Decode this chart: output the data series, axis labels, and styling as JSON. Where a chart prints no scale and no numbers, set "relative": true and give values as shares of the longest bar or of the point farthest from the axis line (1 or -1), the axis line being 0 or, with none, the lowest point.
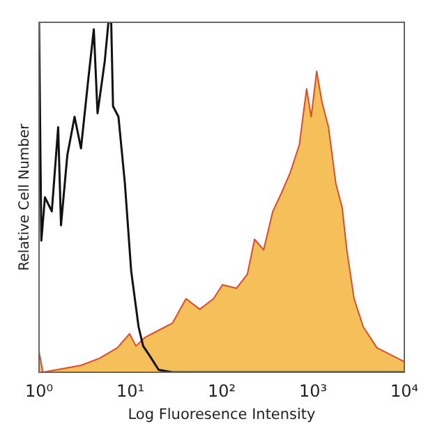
{
  "chart_data": {
    "type": "area",
    "relative": true,
    "log": "x",
    "xlabel": "Log Fluoresence Intensity",
    "ylabel": "Relative Cell Number",
    "xlim": [
      1,
      10000
    ],
    "xticks": [
      {
        "value": 1,
        "label": "10⁰"
      },
      {
        "value": 10,
        "label": "10¹"
      },
      {
        "value": 100,
        "label": "10²"
      },
      {
        "value": 1000,
        "label": "10³"
      },
      {
        "value": 10000,
        "label": "10⁴"
      }
    ],
    "grid": false,
    "legend": false,
    "series": [
      {
        "color": "#f5c05a",
        "x": [
          1,
          1.1,
          2.9,
          4.6,
          7.2,
          9.8,
          11.5,
          14.5,
          20.4,
          28.8,
          40.7,
          57.5,
          81.3,
          102,
          145,
          191,
          229,
          288,
          363,
          447,
          562,
          708,
          851,
          955,
          1096,
          1259,
          1479,
          1778,
          2089,
          2344,
          2818,
          3548,
          5012,
          7079,
          10000
        ],
        "values": [
          0.06,
          0,
          0.02,
          0.04,
          0.07,
          0.11,
          0.075,
          0.1,
          0.12,
          0.14,
          0.21,
          0.18,
          0.21,
          0.25,
          0.24,
          0.28,
          0.38,
          0.35,
          0.46,
          0.51,
          0.57,
          0.65,
          0.81,
          0.73,
          0.86,
          0.77,
          0.7,
          0.54,
          0.47,
          0.35,
          0.21,
          0.13,
          0.07,
          0.05,
          0.03
        ]
      },
      {
        "type": "line",
        "color": "#111111",
        "x": [
          1,
          1.06,
          1.16,
          1.38,
          1.62,
          1.74,
          2.04,
          2.45,
          2.88,
          3.47,
          3.98,
          4.37,
          5.25,
          5.75,
          6.17,
          6.46,
          7.41,
          8.71,
          10.2,
          12.3,
          13.8,
          16.2,
          20.4,
          28.8,
          100,
          1000,
          10000
        ],
        "values": [
          1,
          0.376,
          0.5,
          0.46,
          0.7,
          0.42,
          0.62,
          0.73,
          0.64,
          0.84,
          0.98,
          0.74,
          0.89,
          1,
          1,
          0.76,
          0.73,
          0.54,
          0.29,
          0.13,
          0.075,
          0.048,
          0.007,
          0,
          0,
          0,
          0
        ]
      }
    ]
  }
}
